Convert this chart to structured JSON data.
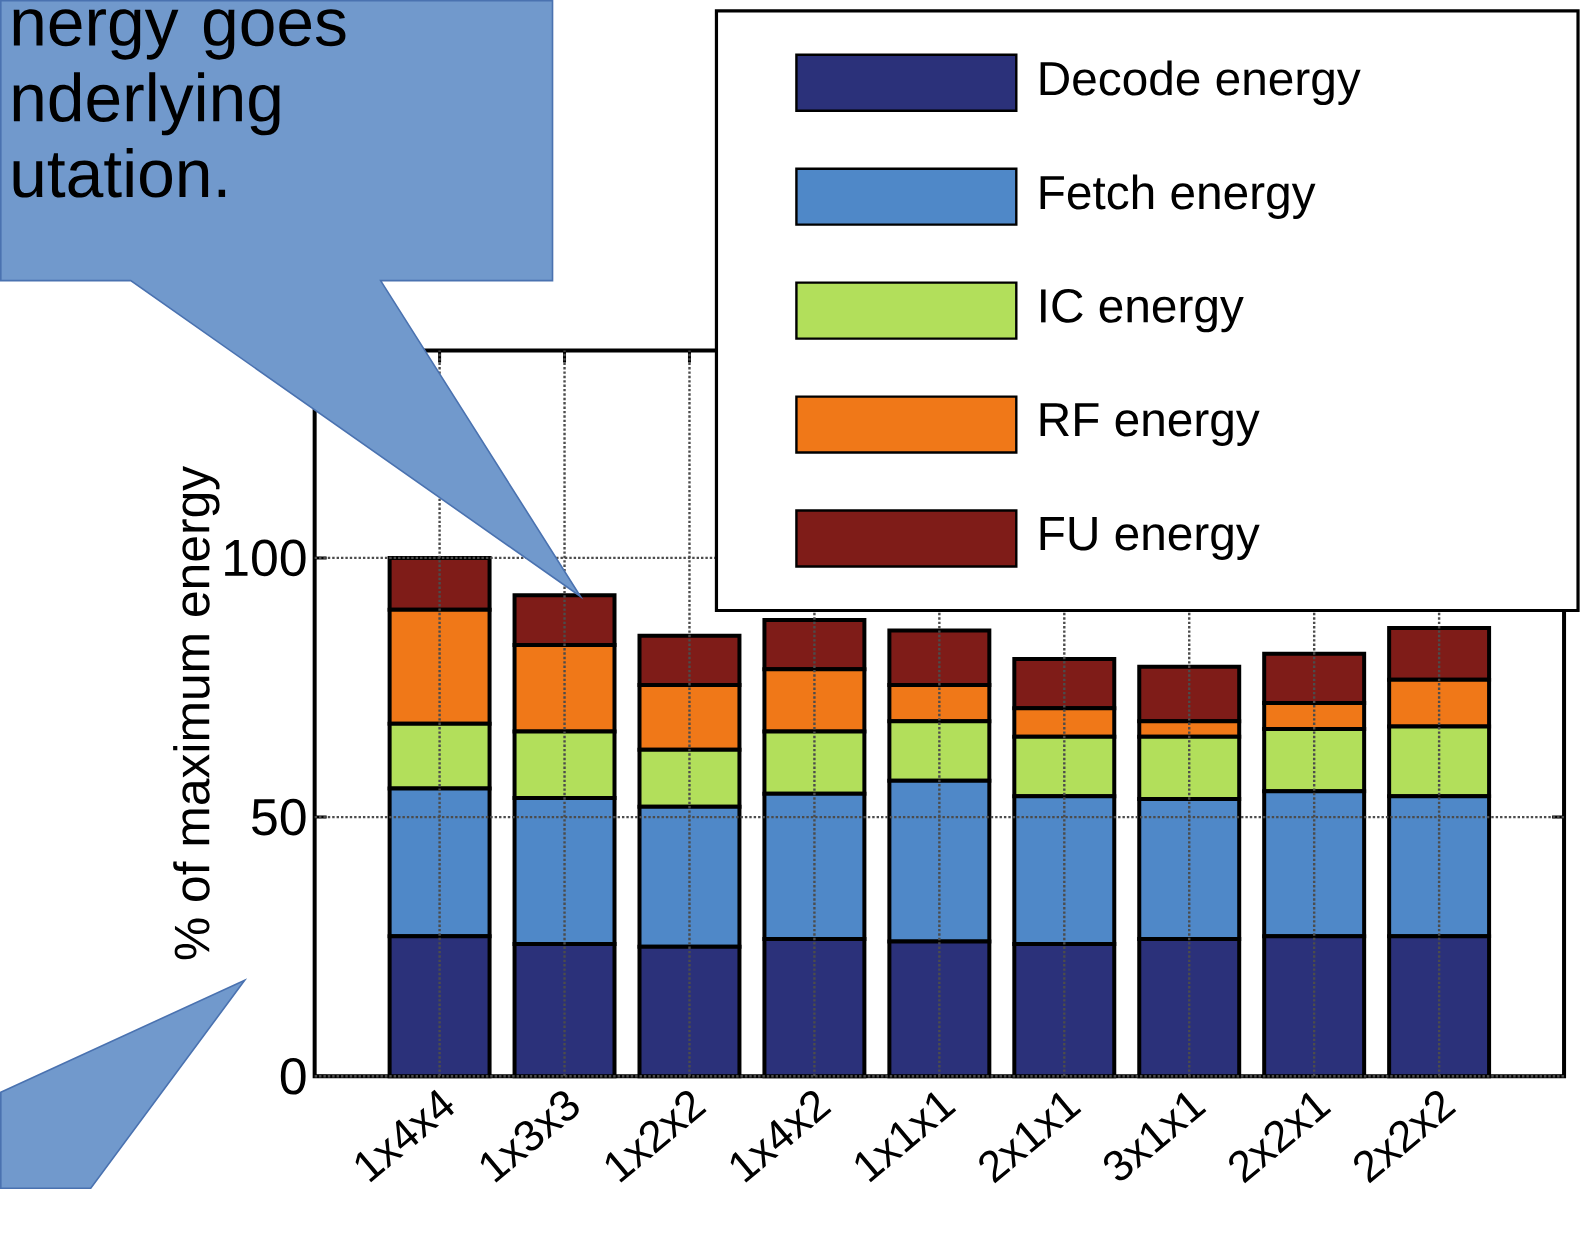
{
  "chart_data": {
    "type": "bar",
    "stacked": true,
    "ylabel": "% of maximum energy",
    "categories": [
      "1x4x4",
      "1x3x3",
      "1x2x2",
      "1x4x2",
      "1x1x1",
      "2x1x1",
      "3x1x1",
      "2x2x1",
      "2x2x2"
    ],
    "series": [
      {
        "name": "Decode energy",
        "color": "#2b317a",
        "values": [
          27,
          25.5,
          25,
          26.5,
          26,
          25.5,
          26.5,
          27,
          27
        ]
      },
      {
        "name": "Fetch energy",
        "color": "#4f88c8",
        "values": [
          28.5,
          28.2,
          27,
          28,
          31,
          28.5,
          27,
          28,
          27
        ]
      },
      {
        "name": "IC energy",
        "color": "#b2df5b",
        "values": [
          12.5,
          12.8,
          11,
          12,
          11.5,
          11.5,
          12,
          12,
          13.5
        ]
      },
      {
        "name": "RF energy",
        "color": "#f07818",
        "values": [
          22,
          16.7,
          12.5,
          12,
          7,
          5.5,
          3,
          5,
          9
        ]
      },
      {
        "name": "FU energy",
        "color": "#7f1c18",
        "values": [
          10,
          9.6,
          9.5,
          9.5,
          10.5,
          9.5,
          10.5,
          9.5,
          10
        ]
      }
    ],
    "ylim": [
      0,
      140
    ],
    "yticks": [
      0,
      50,
      100
    ],
    "grid": true,
    "legend": "top right",
    "annotations": [
      "nergy goes nderlying utation."
    ]
  }
}
